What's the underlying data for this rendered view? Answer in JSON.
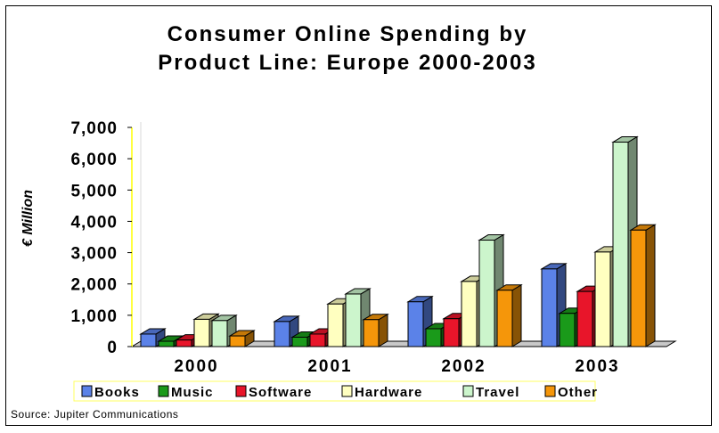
{
  "chart_data": {
    "type": "bar",
    "title": [
      "Consumer Online Spending by",
      "Product Line: Europe 2000-2003"
    ],
    "ylabel": "€ Million",
    "xlabel": "",
    "ylim": [
      0,
      7000
    ],
    "yticks": [
      "0",
      "1,000",
      "2,000",
      "3,000",
      "4,000",
      "5,000",
      "6,000",
      "7,000"
    ],
    "categories": [
      "2000",
      "2001",
      "2002",
      "2003"
    ],
    "series": [
      {
        "name": "Books",
        "color": "#5b82e8",
        "values": [
          400,
          800,
          1430,
          2480
        ]
      },
      {
        "name": "Music",
        "color": "#1a9a1a",
        "values": [
          170,
          300,
          570,
          1060
        ]
      },
      {
        "name": "Software",
        "color": "#e8152a",
        "values": [
          210,
          400,
          890,
          1760
        ]
      },
      {
        "name": "Hardware",
        "color": "#ffffc0",
        "values": [
          870,
          1360,
          2080,
          3020
        ]
      },
      {
        "name": "Travel",
        "color": "#ccf5cc",
        "values": [
          830,
          1680,
          3400,
          6530
        ]
      },
      {
        "name": "Other",
        "color": "#f5960a",
        "values": [
          340,
          860,
          1800,
          3720
        ]
      }
    ],
    "legend_position": "bottom",
    "grid": false,
    "style": "3d"
  },
  "source": "Source: Jupiter Communications"
}
